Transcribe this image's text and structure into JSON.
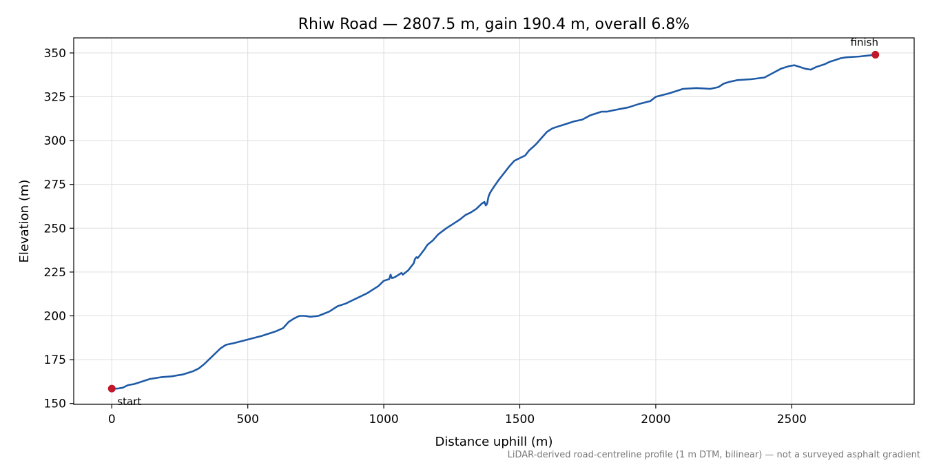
{
  "chart_data": {
    "type": "line",
    "title": "Rhiw Road — 2807.5 m, gain 190.4 m, overall 6.8%",
    "xlabel": "Distance uphill (m)",
    "ylabel": "Elevation (m)",
    "xlim": [
      -140,
      2950
    ],
    "ylim": [
      149.5,
      358.6
    ],
    "xticks": [
      0,
      500,
      1000,
      1500,
      2000,
      2500
    ],
    "yticks": [
      150,
      175,
      200,
      225,
      250,
      275,
      300,
      325,
      350
    ],
    "grid": true,
    "footnote": "LiDAR-derived road-centreline profile (1 m DTM, bilinear) — not a surveyed asphalt gradient",
    "line_color": "#1f5aa6",
    "marker_color": "#c0182a",
    "series": [
      {
        "x": [
          0,
          20,
          40,
          60,
          80,
          100,
          140,
          180,
          220,
          260,
          300,
          320,
          340,
          360,
          380,
          400,
          420,
          450,
          500,
          550,
          600,
          630,
          650,
          670,
          690,
          710,
          730,
          760,
          800,
          830,
          860,
          900,
          940,
          980,
          1000,
          1020,
          1025,
          1030,
          1040,
          1050,
          1060,
          1065,
          1070,
          1090,
          1110,
          1115,
          1120,
          1125,
          1135,
          1150,
          1160,
          1180,
          1200,
          1230,
          1260,
          1280,
          1300,
          1320,
          1340,
          1360,
          1370,
          1375,
          1380,
          1385,
          1390,
          1400,
          1420,
          1440,
          1460,
          1480,
          1500,
          1520,
          1535,
          1550,
          1560,
          1580,
          1600,
          1620,
          1640,
          1660,
          1700,
          1730,
          1760,
          1780,
          1800,
          1820,
          1850,
          1900,
          1940,
          1980,
          2000,
          2050,
          2080,
          2100,
          2150,
          2200,
          2230,
          2250,
          2270,
          2300,
          2350,
          2400,
          2430,
          2460,
          2490,
          2510,
          2530,
          2550,
          2570,
          2590,
          2620,
          2640,
          2660,
          2680,
          2700,
          2750,
          2807.5
        ],
        "y": [
          158.5,
          158.5,
          159.0,
          160.5,
          161.0,
          162.0,
          164.0,
          165.0,
          165.5,
          166.5,
          168.5,
          170.0,
          172.5,
          175.5,
          178.5,
          181.5,
          183.5,
          184.5,
          186.5,
          188.5,
          191.0,
          193.0,
          196.5,
          198.5,
          200.0,
          200.0,
          199.5,
          200.0,
          202.5,
          205.5,
          207.0,
          210.0,
          213.0,
          217.0,
          220.0,
          221.0,
          223.5,
          221.5,
          222.0,
          223.0,
          224.0,
          224.5,
          223.5,
          226.0,
          230.0,
          232.5,
          233.5,
          233.0,
          235.0,
          238.0,
          240.5,
          243.0,
          246.5,
          250.0,
          253.0,
          255.0,
          257.5,
          259.0,
          261.0,
          264.0,
          265.0,
          263.0,
          264.0,
          268.0,
          270.0,
          272.5,
          277.0,
          281.0,
          285.0,
          288.5,
          290.0,
          291.5,
          294.5,
          296.5,
          298.0,
          301.5,
          305.0,
          307.0,
          308.0,
          309.0,
          311.0,
          312.0,
          314.5,
          315.5,
          316.5,
          316.5,
          317.5,
          319.0,
          321.0,
          322.5,
          325.0,
          327.0,
          328.5,
          329.5,
          330.0,
          329.5,
          330.5,
          332.5,
          333.5,
          334.5,
          335.0,
          336.0,
          338.5,
          341.0,
          342.5,
          343.0,
          342.0,
          341.0,
          340.5,
          342.0,
          343.5,
          345.0,
          346.0,
          347.0,
          347.5,
          348.0,
          349.0
        ]
      }
    ],
    "annotations": [
      {
        "text": "start",
        "x": 0,
        "y": 158.5
      },
      {
        "text": "finish",
        "x": 2807.5,
        "y": 349.0
      }
    ]
  }
}
